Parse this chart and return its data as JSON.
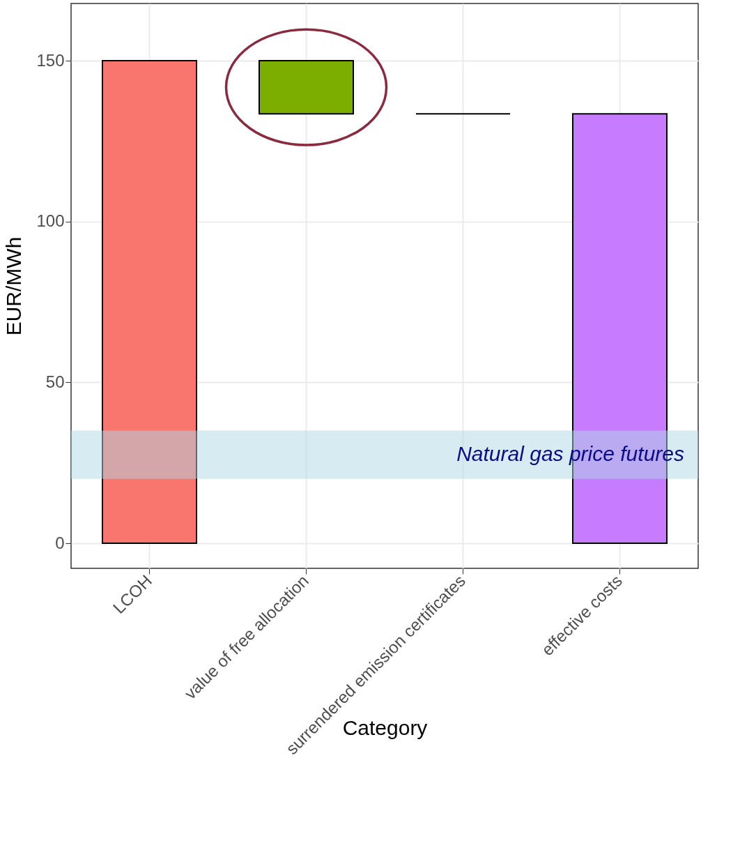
{
  "chart_data": {
    "type": "bar",
    "xlabel": "Category",
    "ylabel": "EUR/MWh",
    "categories": [
      "LCOH",
      "value of free allocation",
      "surrendered emission certificates",
      "effective costs"
    ],
    "values": [
      150,
      16.5,
      0,
      133.5
    ],
    "base": [
      0,
      133.5,
      133.5,
      0
    ],
    "colors": [
      "#f8766d",
      "#7cae00",
      "#000000",
      "#c77cff"
    ],
    "ylim": [
      -7.8,
      167.8
    ],
    "yticks": [
      0,
      50,
      100,
      150
    ],
    "grid": true,
    "bands": [
      {
        "axis": "y",
        "from": 20,
        "to": 35,
        "label": "Natural gas price futures",
        "color": "#add8e6"
      }
    ]
  }
}
